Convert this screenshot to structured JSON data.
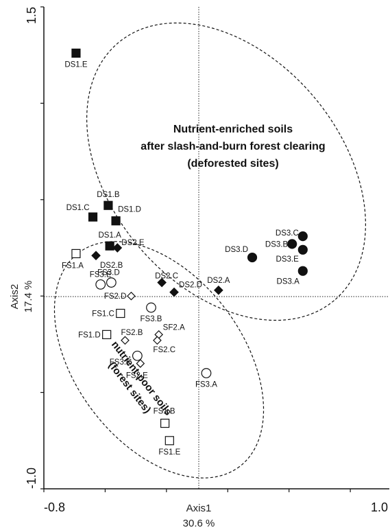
{
  "chart_data": {
    "type": "scatter",
    "title": "",
    "xlabel": "Axis1",
    "xlabel_pct": "30.6 %",
    "ylabel": "Axis2",
    "ylabel_pct": "17.4 %",
    "xlim": [
      -0.8,
      1.0
    ],
    "ylim": [
      -1.0,
      1.5
    ],
    "x_tick_labels": [
      "-0.8",
      "1.0"
    ],
    "y_tick_labels": [
      "1.5",
      "-1.0"
    ],
    "grid": false,
    "legend": "none",
    "colors": {
      "filled": "#111111",
      "open": "#ffffff",
      "stroke": "#111111"
    },
    "series": [
      {
        "marker": "filled-square",
        "points": [
          {
            "label": "DS1.E",
            "x": -0.59,
            "y": 1.26
          },
          {
            "label": "DS1.B",
            "x": -0.38,
            "y": 0.47
          },
          {
            "label": "DS1.C",
            "x": -0.48,
            "y": 0.41
          },
          {
            "label": "DS1.D",
            "x": -0.33,
            "y": 0.39
          },
          {
            "label": "DS1.A",
            "x": -0.37,
            "y": 0.26
          }
        ]
      },
      {
        "marker": "filled-diamond",
        "points": [
          {
            "label": "DS2.E",
            "x": -0.32,
            "y": 0.25
          },
          {
            "label": "DS2.B",
            "x": -0.46,
            "y": 0.21
          },
          {
            "label": "DS2.C",
            "x": -0.03,
            "y": 0.07
          },
          {
            "label": "DS2.D",
            "x": 0.05,
            "y": 0.02
          },
          {
            "label": "DS2.A",
            "x": 0.34,
            "y": 0.03
          }
        ]
      },
      {
        "marker": "filled-circle",
        "points": [
          {
            "label": "DS3.D",
            "x": 0.56,
            "y": 0.2
          },
          {
            "label": "DS3.C",
            "x": 0.89,
            "y": 0.31
          },
          {
            "label": "DS3.B",
            "x": 0.82,
            "y": 0.27
          },
          {
            "label": "DS3.E",
            "x": 0.89,
            "y": 0.24
          },
          {
            "label": "DS3.A",
            "x": 0.89,
            "y": 0.13
          }
        ]
      },
      {
        "marker": "open-square",
        "points": [
          {
            "label": "FS1.A",
            "x": -0.59,
            "y": 0.22
          },
          {
            "label": "FS1.C",
            "x": -0.3,
            "y": -0.09
          },
          {
            "label": "FS1.D",
            "x": -0.39,
            "y": -0.2
          },
          {
            "label": "FS1.B",
            "x": -0.01,
            "y": -0.66
          },
          {
            "label": "FS1.E",
            "x": 0.02,
            "y": -0.75
          }
        ]
      },
      {
        "marker": "open-circle",
        "points": [
          {
            "label": "FS3.E",
            "x": -0.43,
            "y": 0.06
          },
          {
            "label": "FS3.D",
            "x": -0.36,
            "y": 0.07
          },
          {
            "label": "FS3.B",
            "x": -0.1,
            "y": -0.06
          },
          {
            "label": "FS3.C",
            "x": -0.19,
            "y": -0.31
          },
          {
            "label": "FS3.A",
            "x": 0.26,
            "y": -0.4
          }
        ]
      },
      {
        "marker": "open-diamond",
        "points": [
          {
            "label": "FS2.D",
            "x": -0.23,
            "y": 0.0
          },
          {
            "label": "FS2.B",
            "x": -0.27,
            "y": -0.23
          },
          {
            "label": "SF2.A",
            "x": -0.05,
            "y": -0.2
          },
          {
            "label": "FS2.C",
            "x": -0.06,
            "y": -0.23
          },
          {
            "label": "FS2.E",
            "x": -0.17,
            "y": -0.35
          }
        ]
      }
    ],
    "annotations": [
      {
        "id": "enriched",
        "lines": [
          "Nutrient-enriched soils",
          "after slash-and-burn forest clearing",
          "(deforested sites)"
        ]
      },
      {
        "id": "poor",
        "lines": [
          "nutrient-poor soils",
          "(forest sites)"
        ]
      }
    ]
  }
}
